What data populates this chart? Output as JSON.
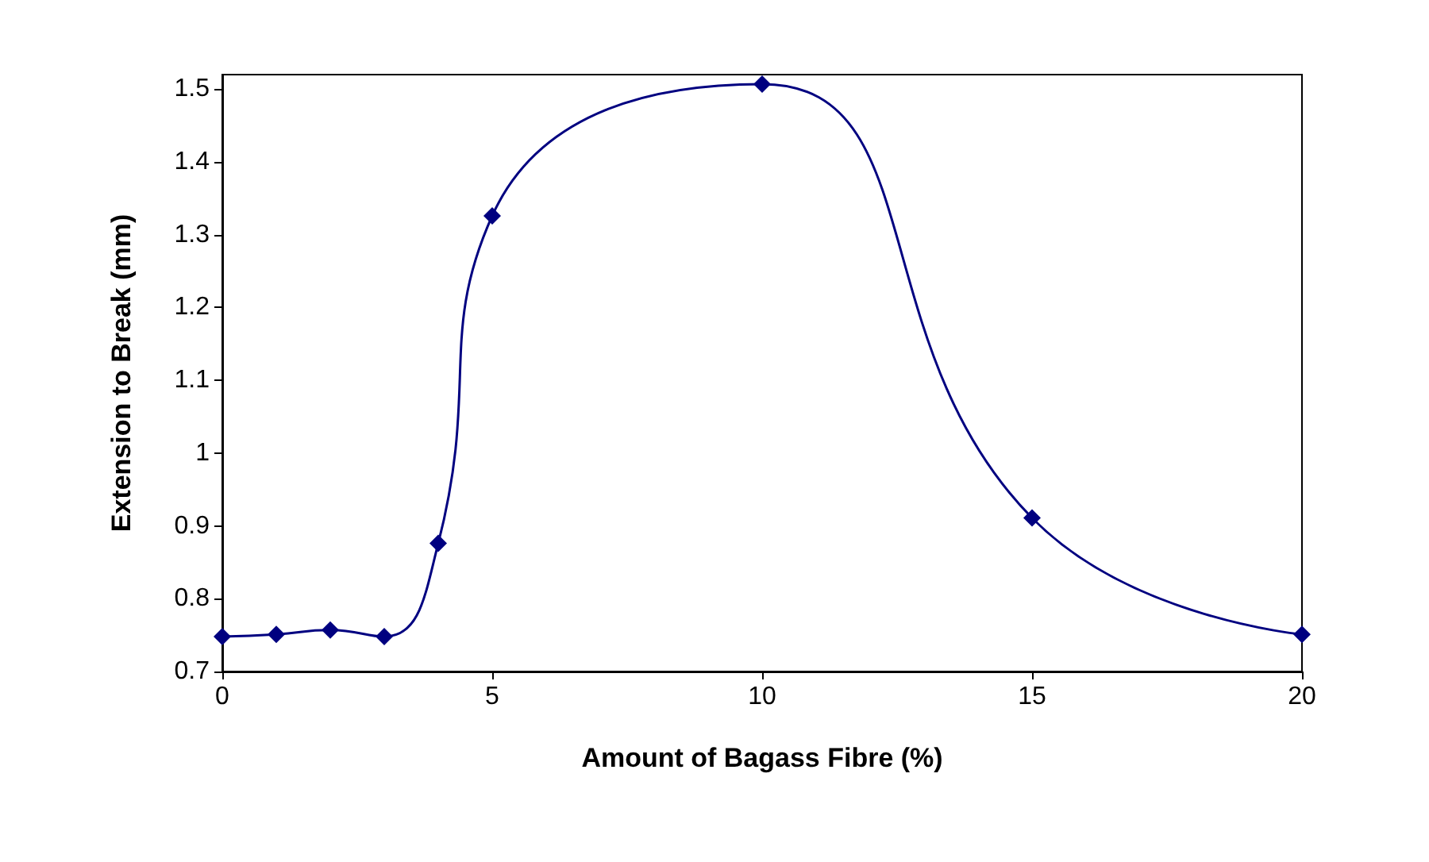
{
  "chart_data": {
    "type": "line",
    "xlabel": "Amount of Bagass Fibre (%)",
    "ylabel": "Extension to Break (mm)",
    "x": [
      0,
      1,
      2,
      3,
      4,
      5,
      10,
      15,
      20
    ],
    "series": [
      {
        "color": "#000080",
        "values": [
          0.748,
          0.751,
          0.757,
          0.748,
          0.876,
          1.326,
          1.507,
          0.911,
          0.751
        ]
      }
    ],
    "xlim": [
      0,
      20
    ],
    "xticks": [
      0,
      5,
      10,
      15,
      20
    ],
    "ylim": [
      0.7,
      1.52
    ],
    "yticks": [
      0.7,
      0.8,
      0.9,
      1,
      1.1,
      1.2,
      1.3,
      1.4,
      1.5
    ],
    "grid": false,
    "marker": "diamond",
    "line_style": "solid"
  }
}
